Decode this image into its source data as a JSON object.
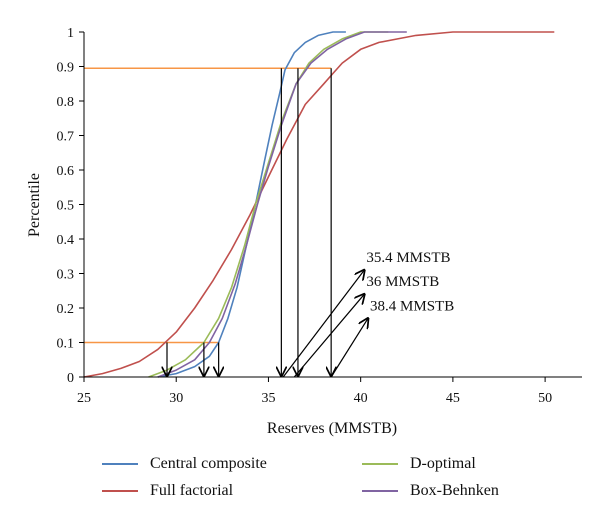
{
  "chart_data": {
    "type": "line",
    "title": "",
    "xlabel": "Reserves (MMSTB)",
    "ylabel": "Percentile",
    "xlim": [
      25,
      52
    ],
    "ylim": [
      0,
      1
    ],
    "x_ticks": [
      "25",
      "30",
      "35",
      "40",
      "45",
      "50"
    ],
    "y_ticks": [
      "0",
      "0.1",
      "0.2",
      "0.3",
      "0.4",
      "0.5",
      "0.6",
      "0.7",
      "0.8",
      "0.9",
      "1"
    ],
    "grid": false,
    "legend_position": "bottom",
    "series": [
      {
        "name": "Central composite",
        "color": "#4f81bd",
        "points": [
          [
            29.0,
            0
          ],
          [
            30.0,
            0.01
          ],
          [
            31.0,
            0.03
          ],
          [
            31.8,
            0.06
          ],
          [
            32.3,
            0.1
          ],
          [
            32.8,
            0.17
          ],
          [
            33.3,
            0.26
          ],
          [
            33.8,
            0.38
          ],
          [
            34.3,
            0.5
          ],
          [
            34.8,
            0.63
          ],
          [
            35.2,
            0.73
          ],
          [
            35.6,
            0.82
          ],
          [
            35.9,
            0.89
          ],
          [
            36.4,
            0.94
          ],
          [
            37.0,
            0.97
          ],
          [
            37.7,
            0.99
          ],
          [
            38.5,
            1.0
          ],
          [
            39.2,
            1.0
          ]
        ]
      },
      {
        "name": "Full factorial",
        "color": "#c0504d",
        "points": [
          [
            25.0,
            0
          ],
          [
            26.0,
            0.01
          ],
          [
            27.0,
            0.025
          ],
          [
            28.0,
            0.045
          ],
          [
            29.0,
            0.08
          ],
          [
            30.0,
            0.13
          ],
          [
            31.0,
            0.2
          ],
          [
            32.0,
            0.28
          ],
          [
            33.0,
            0.37
          ],
          [
            34.0,
            0.47
          ],
          [
            35.0,
            0.58
          ],
          [
            36.0,
            0.69
          ],
          [
            37.0,
            0.79
          ],
          [
            38.0,
            0.85
          ],
          [
            38.5,
            0.88
          ],
          [
            39.0,
            0.91
          ],
          [
            40.0,
            0.95
          ],
          [
            41.0,
            0.97
          ],
          [
            42.0,
            0.98
          ],
          [
            43.0,
            0.99
          ],
          [
            45.0,
            1.0
          ],
          [
            50.5,
            1.0
          ]
        ]
      },
      {
        "name": "D-optimal",
        "color": "#9bbb59",
        "points": [
          [
            28.5,
            0
          ],
          [
            29.5,
            0.02
          ],
          [
            30.5,
            0.05
          ],
          [
            31.5,
            0.1
          ],
          [
            32.3,
            0.17
          ],
          [
            33.0,
            0.26
          ],
          [
            33.7,
            0.38
          ],
          [
            34.3,
            0.5
          ],
          [
            35.0,
            0.62
          ],
          [
            35.7,
            0.74
          ],
          [
            36.5,
            0.85
          ],
          [
            37.2,
            0.91
          ],
          [
            38.0,
            0.95
          ],
          [
            39.0,
            0.98
          ],
          [
            40.0,
            1.0
          ],
          [
            41.5,
            1.0
          ]
        ]
      },
      {
        "name": "Box-Behnken",
        "color": "#8064a2",
        "points": [
          [
            29.0,
            0
          ],
          [
            30.0,
            0.02
          ],
          [
            31.0,
            0.05
          ],
          [
            31.8,
            0.1
          ],
          [
            32.5,
            0.17
          ],
          [
            33.2,
            0.27
          ],
          [
            33.8,
            0.38
          ],
          [
            34.4,
            0.5
          ],
          [
            35.0,
            0.61
          ],
          [
            35.7,
            0.73
          ],
          [
            36.5,
            0.85
          ],
          [
            37.3,
            0.91
          ],
          [
            38.2,
            0.95
          ],
          [
            39.2,
            0.98
          ],
          [
            40.2,
            1.0
          ],
          [
            42.5,
            1.0
          ]
        ]
      }
    ],
    "reference_lines": [
      {
        "name": "p90-line",
        "y": 0.895,
        "x_start": 25,
        "x_end": 38.4,
        "color": "#f79646"
      },
      {
        "name": "p10-line",
        "y": 0.1,
        "x_start": 25,
        "x_end": 32.3,
        "color": "#f79646"
      }
    ],
    "drop_arrows": [
      {
        "x": 29.5,
        "y_top": 0.1
      },
      {
        "x": 31.5,
        "y_top": 0.1
      },
      {
        "x": 32.3,
        "y_top": 0.1
      },
      {
        "x": 35.7,
        "y_top": 0.895
      },
      {
        "x": 36.6,
        "y_top": 0.895
      },
      {
        "x": 38.4,
        "y_top": 0.895
      }
    ],
    "annotations": [
      {
        "text": "35.4 MMSTB",
        "from_x": 35.8,
        "from_y": 0.0,
        "to_x": 40.2,
        "to_y": 0.31
      },
      {
        "text": "36 MMSTB",
        "from_x": 36.4,
        "from_y": 0.0,
        "to_x": 40.2,
        "to_y": 0.24
      },
      {
        "text": "38.4 MMSTB",
        "from_x": 38.4,
        "from_y": 0.0,
        "to_x": 40.4,
        "to_y": 0.17
      }
    ]
  }
}
